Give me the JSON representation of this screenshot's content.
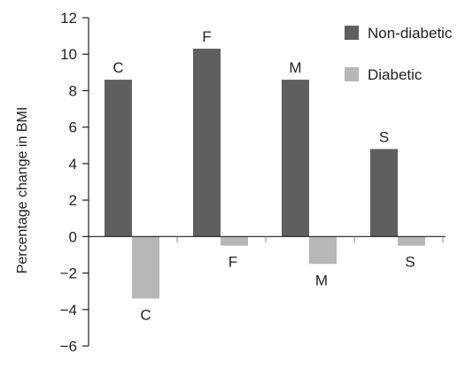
{
  "chart_data": {
    "type": "bar",
    "title": "",
    "xlabel": "",
    "ylabel": "Percentage change in BMI",
    "ylim": [
      -6,
      12
    ],
    "yticks": [
      12,
      10,
      8,
      6,
      4,
      2,
      0,
      -2,
      -4,
      -6
    ],
    "ytick_labels": [
      "12",
      "10",
      "8",
      "6",
      "4",
      "2",
      "0",
      "−2",
      "−4",
      "−6"
    ],
    "categories": [
      "C",
      "F",
      "M",
      "S"
    ],
    "series": [
      {
        "name": "Non-diabetic",
        "color": "#5f5f5f",
        "values": [
          8.6,
          10.3,
          8.6,
          4.8
        ],
        "labels": [
          "C",
          "F",
          "M",
          "S"
        ]
      },
      {
        "name": "Diabetic",
        "color": "#b7b7b7",
        "values": [
          -3.4,
          -0.5,
          -1.5,
          -0.5
        ],
        "labels": [
          "C",
          "F",
          "M",
          "S"
        ]
      }
    ],
    "legend": {
      "placement": "top-right"
    },
    "grid": false
  }
}
